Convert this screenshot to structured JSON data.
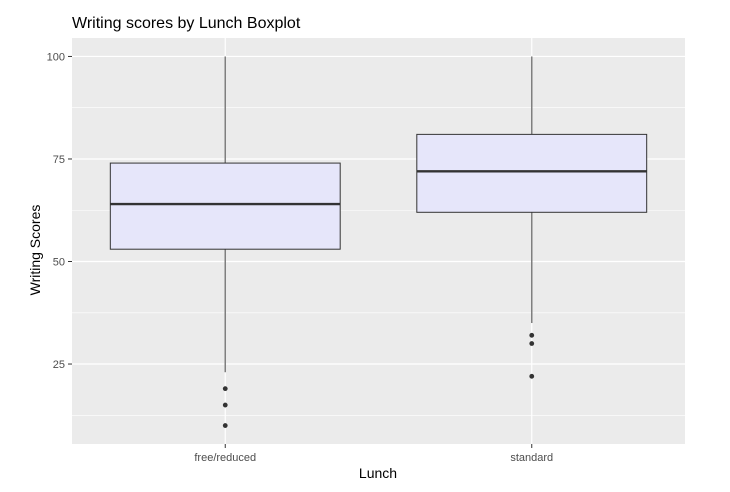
{
  "chart_data": {
    "type": "boxplot",
    "title": "Writing scores by Lunch Boxplot",
    "xlabel": "Lunch",
    "ylabel": "Writing Scores",
    "categories": [
      "free/reduced",
      "standard"
    ],
    "ylim": [
      5.5,
      104.5
    ],
    "yticks": [
      25,
      50,
      75,
      100
    ],
    "ytick_labels": [
      "25",
      "50",
      "75",
      "100"
    ],
    "grid": true,
    "boxes": [
      {
        "category": "free/reduced",
        "whisker_low": 23,
        "q1": 53,
        "median": 64,
        "q3": 74,
        "whisker_high": 100,
        "outliers": [
          19,
          15,
          10
        ]
      },
      {
        "category": "standard",
        "whisker_low": 35,
        "q1": 62,
        "median": 72,
        "q3": 81,
        "whisker_high": 100,
        "outliers": [
          32,
          30,
          22
        ]
      }
    ],
    "colors": {
      "panel_bg": "#ebebeb",
      "grid": "#ffffff",
      "box_fill": "#e6e6fa",
      "box_stroke": "#333333",
      "whisker": "#7f7f7f",
      "median": "#333333",
      "outlier": "#333333"
    }
  }
}
